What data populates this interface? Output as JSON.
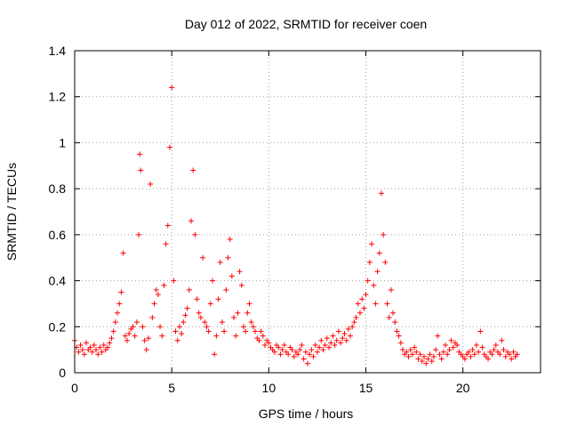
{
  "chart_data": {
    "type": "scatter",
    "title": "Day 012 of 2022, SRMTID for receiver coen",
    "xlabel": "GPS time / hours",
    "ylabel": "SRMTID / TECUs",
    "xlim": [
      0,
      24
    ],
    "ylim": [
      0,
      1.4
    ],
    "xticks": [
      0,
      5,
      10,
      15,
      20
    ],
    "xtick_labels": [
      "0",
      "5",
      "10",
      "15",
      "20"
    ],
    "yticks": [
      0,
      0.2,
      0.4,
      0.6,
      0.8,
      1,
      1.2,
      1.4
    ],
    "ytick_labels": [
      "0",
      "0.2",
      "0.4",
      "0.6",
      "0.8",
      "1",
      "1.2",
      "1.4"
    ],
    "grid": true,
    "marker": "+",
    "color": "#ff0000",
    "series": [
      {
        "name": "SRMTID",
        "x": [
          0.0,
          0.1,
          0.2,
          0.3,
          0.4,
          0.5,
          0.6,
          0.7,
          0.8,
          0.9,
          1.0,
          1.1,
          1.2,
          1.3,
          1.4,
          1.5,
          1.6,
          1.7,
          1.8,
          1.9,
          2.0,
          2.1,
          2.2,
          2.3,
          2.4,
          2.5,
          2.6,
          2.7,
          2.8,
          2.9,
          3.0,
          3.1,
          3.2,
          3.3,
          3.35,
          3.4,
          3.5,
          3.6,
          3.7,
          3.8,
          3.9,
          4.0,
          4.1,
          4.2,
          4.3,
          4.4,
          4.5,
          4.6,
          4.7,
          4.8,
          4.9,
          5.0,
          5.1,
          5.2,
          5.3,
          5.4,
          5.5,
          5.6,
          5.7,
          5.8,
          5.9,
          6.0,
          6.1,
          6.2,
          6.3,
          6.4,
          6.5,
          6.6,
          6.7,
          6.8,
          6.9,
          7.0,
          7.1,
          7.2,
          7.3,
          7.4,
          7.5,
          7.6,
          7.7,
          7.8,
          7.9,
          8.0,
          8.1,
          8.2,
          8.3,
          8.4,
          8.5,
          8.6,
          8.7,
          8.8,
          8.9,
          9.0,
          9.1,
          9.2,
          9.3,
          9.4,
          9.5,
          9.6,
          9.7,
          9.8,
          9.9,
          10.0,
          10.1,
          10.2,
          10.3,
          10.4,
          10.5,
          10.6,
          10.7,
          10.8,
          10.9,
          11.0,
          11.1,
          11.2,
          11.3,
          11.4,
          11.5,
          11.6,
          11.7,
          11.8,
          11.9,
          12.0,
          12.1,
          12.2,
          12.3,
          12.4,
          12.5,
          12.6,
          12.7,
          12.8,
          12.9,
          13.0,
          13.1,
          13.2,
          13.3,
          13.4,
          13.5,
          13.6,
          13.7,
          13.8,
          13.9,
          14.0,
          14.1,
          14.2,
          14.3,
          14.4,
          14.5,
          14.6,
          14.7,
          14.8,
          14.9,
          15.0,
          15.1,
          15.2,
          15.3,
          15.4,
          15.5,
          15.6,
          15.7,
          15.8,
          15.9,
          16.0,
          16.1,
          16.2,
          16.3,
          16.4,
          16.5,
          16.6,
          16.7,
          16.8,
          16.9,
          17.0,
          17.1,
          17.2,
          17.3,
          17.4,
          17.5,
          17.6,
          17.7,
          17.8,
          17.9,
          18.0,
          18.1,
          18.2,
          18.3,
          18.4,
          18.5,
          18.6,
          18.7,
          18.8,
          18.9,
          19.0,
          19.1,
          19.2,
          19.3,
          19.4,
          19.5,
          19.6,
          19.7,
          19.8,
          19.9,
          20.0,
          20.1,
          20.2,
          20.3,
          20.4,
          20.5,
          20.6,
          20.7,
          20.8,
          20.9,
          21.0,
          21.1,
          21.2,
          21.3,
          21.4,
          21.5,
          21.6,
          21.7,
          21.8,
          21.9,
          22.0,
          22.1,
          22.2,
          22.3,
          22.4,
          22.5,
          22.6,
          22.7,
          22.8
        ],
        "y": [
          0.14,
          0.11,
          0.09,
          0.12,
          0.1,
          0.08,
          0.13,
          0.1,
          0.11,
          0.09,
          0.12,
          0.1,
          0.08,
          0.11,
          0.09,
          0.12,
          0.1,
          0.11,
          0.13,
          0.15,
          0.18,
          0.22,
          0.26,
          0.3,
          0.35,
          0.52,
          0.16,
          0.14,
          0.17,
          0.19,
          0.2,
          0.16,
          0.22,
          0.6,
          0.95,
          0.88,
          0.2,
          0.14,
          0.1,
          0.15,
          0.82,
          0.24,
          0.3,
          0.36,
          0.34,
          0.2,
          0.16,
          0.38,
          0.56,
          0.64,
          0.98,
          1.24,
          0.4,
          0.18,
          0.14,
          0.2,
          0.17,
          0.22,
          0.25,
          0.28,
          0.36,
          0.66,
          0.88,
          0.6,
          0.32,
          0.26,
          0.24,
          0.5,
          0.22,
          0.2,
          0.18,
          0.3,
          0.4,
          0.08,
          0.16,
          0.32,
          0.48,
          0.22,
          0.18,
          0.36,
          0.5,
          0.58,
          0.42,
          0.24,
          0.16,
          0.26,
          0.44,
          0.38,
          0.2,
          0.18,
          0.26,
          0.3,
          0.22,
          0.2,
          0.18,
          0.15,
          0.14,
          0.18,
          0.16,
          0.12,
          0.14,
          0.13,
          0.11,
          0.1,
          0.09,
          0.12,
          0.11,
          0.08,
          0.1,
          0.12,
          0.09,
          0.08,
          0.11,
          0.1,
          0.07,
          0.09,
          0.08,
          0.1,
          0.12,
          0.06,
          0.09,
          0.04,
          0.08,
          0.1,
          0.07,
          0.12,
          0.09,
          0.11,
          0.14,
          0.1,
          0.12,
          0.15,
          0.11,
          0.13,
          0.16,
          0.12,
          0.14,
          0.18,
          0.13,
          0.15,
          0.17,
          0.14,
          0.19,
          0.16,
          0.2,
          0.22,
          0.24,
          0.3,
          0.26,
          0.32,
          0.28,
          0.34,
          0.4,
          0.48,
          0.56,
          0.38,
          0.3,
          0.44,
          0.52,
          0.78,
          0.6,
          0.48,
          0.3,
          0.24,
          0.36,
          0.26,
          0.22,
          0.18,
          0.16,
          0.13,
          0.1,
          0.08,
          0.09,
          0.07,
          0.1,
          0.08,
          0.11,
          0.09,
          0.06,
          0.08,
          0.05,
          0.07,
          0.04,
          0.06,
          0.08,
          0.05,
          0.07,
          0.1,
          0.16,
          0.08,
          0.06,
          0.09,
          0.12,
          0.08,
          0.1,
          0.14,
          0.11,
          0.13,
          0.12,
          0.09,
          0.08,
          0.07,
          0.06,
          0.08,
          0.09,
          0.07,
          0.1,
          0.08,
          0.12,
          0.09,
          0.18,
          0.11,
          0.08,
          0.07,
          0.06,
          0.09,
          0.08,
          0.1,
          0.12,
          0.09,
          0.08,
          0.14,
          0.1,
          0.07,
          0.09,
          0.08,
          0.06,
          0.09,
          0.07,
          0.08
        ]
      }
    ]
  }
}
